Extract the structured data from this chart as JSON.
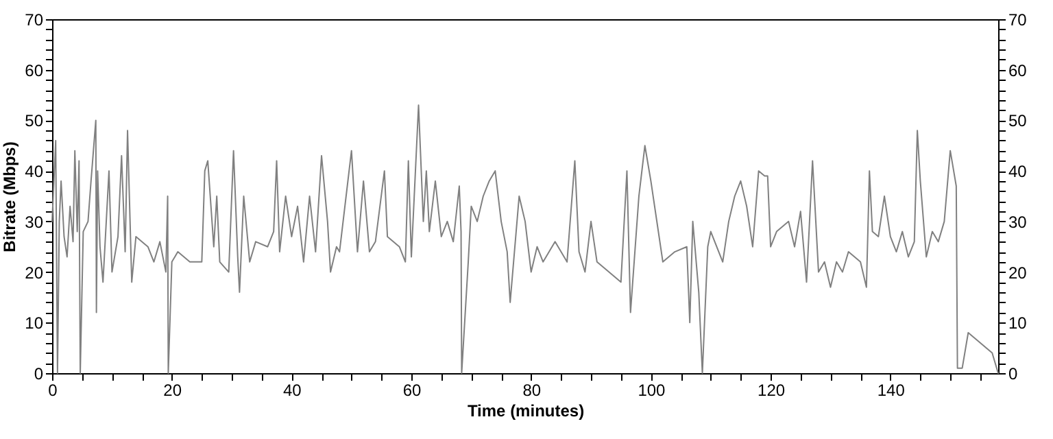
{
  "chart_data": {
    "type": "line",
    "xlabel": "Time (minutes)",
    "ylabel": "Bitrate (Mbps)",
    "x": [
      0,
      0.6,
      0.9,
      1.2,
      1.5,
      2,
      2.5,
      3,
      3.5,
      3.8,
      4.2,
      4.5,
      4.7,
      5.2,
      6,
      6.5,
      7.3,
      7.4,
      7.6,
      8,
      8.5,
      9.5,
      10,
      11,
      11.6,
      12.2,
      12.6,
      13.3,
      14,
      16,
      17,
      18,
      19,
      19.3,
      19.4,
      20,
      21,
      23,
      25,
      25.5,
      26,
      27,
      27.5,
      28,
      29.5,
      30.3,
      31,
      31.3,
      32,
      33,
      34,
      36,
      37,
      37.5,
      38,
      39,
      40,
      41,
      42,
      43,
      44,
      45,
      46,
      46.5,
      47.5,
      48,
      50,
      51,
      52,
      53,
      54,
      55.5,
      56,
      58,
      59,
      59.5,
      60,
      61.2,
      62,
      62.5,
      63,
      64,
      65,
      66,
      67,
      68,
      68.3,
      68.4,
      69.5,
      70,
      71,
      72,
      73,
      74,
      75,
      76,
      76.5,
      78,
      79,
      80,
      81,
      82,
      84,
      86,
      87.3,
      88,
      89,
      90,
      91,
      93,
      95,
      96,
      96.6,
      98,
      99,
      100,
      101,
      102,
      104,
      106,
      106.5,
      107,
      108,
      108.6,
      109.5,
      110,
      112,
      113,
      114,
      115,
      116,
      117,
      118,
      119,
      119.5,
      120,
      121,
      123,
      124,
      125,
      126,
      127,
      128,
      129,
      130,
      131,
      132,
      133,
      135,
      136,
      136.5,
      137,
      138,
      139,
      140,
      141,
      142,
      143,
      144,
      144.5,
      145,
      146,
      147,
      148,
      149,
      150,
      151,
      151.2,
      152,
      153,
      155,
      157,
      158
    ],
    "series": [
      {
        "color": "#808080",
        "values": [
          30,
          46,
          0,
          30,
          38,
          27,
          23,
          33,
          26,
          44,
          28,
          42,
          0,
          28,
          30,
          38,
          50,
          12,
          40,
          25,
          18,
          40,
          20,
          27,
          43,
          24,
          48,
          18,
          27,
          25,
          22,
          26,
          20,
          35,
          0,
          22,
          24,
          22,
          22,
          40,
          42,
          25,
          35,
          22,
          20,
          44,
          23,
          16,
          35,
          22,
          26,
          25,
          28,
          42,
          24,
          35,
          27,
          33,
          22,
          35,
          24,
          43,
          30,
          20,
          25,
          24,
          44,
          24,
          38,
          24,
          26,
          40,
          27,
          25,
          22,
          42,
          23,
          53,
          30,
          40,
          28,
          38,
          27,
          30,
          26,
          37,
          28,
          0,
          22,
          33,
          30,
          35,
          38,
          40,
          30,
          24,
          14,
          35,
          30,
          20,
          25,
          22,
          26,
          22,
          42,
          24,
          20,
          30,
          22,
          20,
          18,
          40,
          12,
          35,
          45,
          38,
          30,
          22,
          24,
          25,
          10,
          30,
          16,
          0,
          25,
          28,
          22,
          30,
          35,
          38,
          33,
          25,
          40,
          39,
          39,
          25,
          28,
          30,
          25,
          32,
          18,
          42,
          20,
          22,
          17,
          22,
          20,
          24,
          22,
          17,
          40,
          28,
          27,
          35,
          27,
          24,
          28,
          23,
          26,
          48,
          38,
          23,
          28,
          26,
          30,
          44,
          37,
          1,
          1,
          8,
          6,
          4,
          0
        ]
      }
    ],
    "xlim": [
      0,
      158
    ],
    "xticks": [
      0,
      {
        "value": 5,
        "label": null
      },
      {
        "value": 10,
        "label": null
      },
      {
        "value": 15,
        "label": null
      },
      20,
      {
        "value": 25,
        "label": null
      },
      {
        "value": 30,
        "label": null
      },
      {
        "value": 35,
        "label": null
      },
      40,
      {
        "value": 45,
        "label": null
      },
      {
        "value": 50,
        "label": null
      },
      {
        "value": 55,
        "label": null
      },
      60,
      {
        "value": 65,
        "label": null
      },
      {
        "value": 70,
        "label": null
      },
      {
        "value": 75,
        "label": null
      },
      80,
      {
        "value": 85,
        "label": null
      },
      {
        "value": 90,
        "label": null
      },
      {
        "value": 95,
        "label": null
      },
      100,
      {
        "value": 105,
        "label": null
      },
      {
        "value": 110,
        "label": null
      },
      {
        "value": 115,
        "label": null
      },
      120,
      {
        "value": 125,
        "label": null
      },
      {
        "value": 130,
        "label": null
      },
      {
        "value": 135,
        "label": null
      },
      140,
      {
        "value": 145,
        "label": null
      },
      {
        "value": 150,
        "label": null
      },
      {
        "value": 155,
        "label": null
      }
    ],
    "ylim": [
      0,
      70
    ],
    "yticks": [
      0,
      {
        "value": 2,
        "label": null
      },
      {
        "value": 4,
        "label": null
      },
      {
        "value": 6,
        "label": null
      },
      {
        "value": 8,
        "label": null
      },
      10,
      {
        "value": 12,
        "label": null
      },
      {
        "value": 14,
        "label": null
      },
      {
        "value": 16,
        "label": null
      },
      {
        "value": 18,
        "label": null
      },
      20,
      {
        "value": 22,
        "label": null
      },
      {
        "value": 24,
        "label": null
      },
      {
        "value": 26,
        "label": null
      },
      {
        "value": 28,
        "label": null
      },
      30,
      {
        "value": 32,
        "label": null
      },
      {
        "value": 34,
        "label": null
      },
      {
        "value": 36,
        "label": null
      },
      {
        "value": 38,
        "label": null
      },
      40,
      {
        "value": 42,
        "label": null
      },
      {
        "value": 44,
        "label": null
      },
      {
        "value": 46,
        "label": null
      },
      {
        "value": 48,
        "label": null
      },
      50,
      {
        "value": 52,
        "label": null
      },
      {
        "value": 54,
        "label": null
      },
      {
        "value": 56,
        "label": null
      },
      {
        "value": 58,
        "label": null
      },
      60,
      {
        "value": 62,
        "label": null
      },
      {
        "value": 64,
        "label": null
      },
      {
        "value": 66,
        "label": null
      },
      {
        "value": 68,
        "label": null
      },
      70
    ],
    "y2lim": [
      0,
      70
    ],
    "y2ticks": [
      0,
      {
        "value": 2,
        "label": null
      },
      {
        "value": 4,
        "label": null
      },
      {
        "value": 6,
        "label": null
      },
      {
        "value": 8,
        "label": null
      },
      10,
      {
        "value": 12,
        "label": null
      },
      {
        "value": 14,
        "label": null
      },
      {
        "value": 16,
        "label": null
      },
      {
        "value": 18,
        "label": null
      },
      20,
      {
        "value": 22,
        "label": null
      },
      {
        "value": 24,
        "label": null
      },
      {
        "value": 26,
        "label": null
      },
      {
        "value": 28,
        "label": null
      },
      30,
      {
        "value": 32,
        "label": null
      },
      {
        "value": 34,
        "label": null
      },
      {
        "value": 36,
        "label": null
      },
      {
        "value": 38,
        "label": null
      },
      40,
      {
        "value": 42,
        "label": null
      },
      {
        "value": 44,
        "label": null
      },
      {
        "value": 46,
        "label": null
      },
      {
        "value": 48,
        "label": null
      },
      50,
      {
        "value": 52,
        "label": null
      },
      {
        "value": 54,
        "label": null
      },
      {
        "value": 56,
        "label": null
      },
      {
        "value": 58,
        "label": null
      },
      60,
      {
        "value": 62,
        "label": null
      },
      {
        "value": 64,
        "label": null
      },
      {
        "value": 66,
        "label": null
      },
      {
        "value": 68,
        "label": null
      },
      70
    ],
    "grid": false
  }
}
